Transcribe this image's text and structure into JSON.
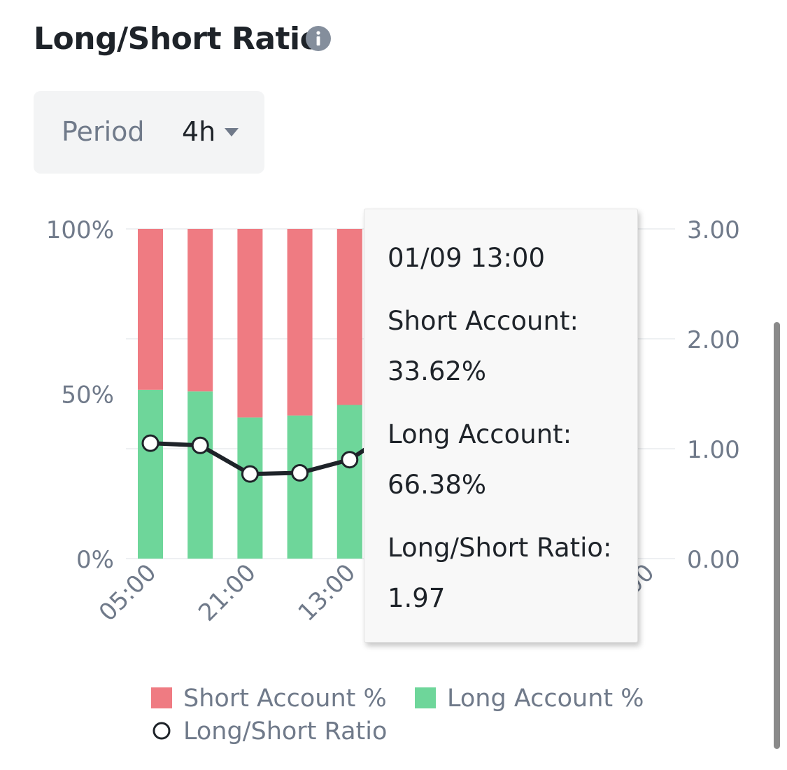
{
  "header": {
    "title": "Long/Short Ratio",
    "info_icon": "info-icon"
  },
  "period": {
    "label": "Period",
    "value": "4h",
    "caret_icon": "caret-down-icon"
  },
  "tooltip": {
    "datetime": "01/09 13:00",
    "short_label": "Short Account:",
    "short_value": "33.62%",
    "long_label": "Long Account:",
    "long_value": "66.38%",
    "ratio_label": "Long/Short Ratio:",
    "ratio_value": "1.97"
  },
  "legend": {
    "short": "Short Account %",
    "long": "Long Account %",
    "ratio": "Long/Short Ratio"
  },
  "chart_data": {
    "type": "bar",
    "stacked": true,
    "categories": [
      "05:00",
      "",
      "21:00",
      "",
      "13:00",
      "",
      "",
      "",
      "",
      "13:00"
    ],
    "x_tick_labels": [
      "05:00",
      "21:00",
      "13:00",
      "",
      "",
      "00"
    ],
    "left_axis": {
      "ticks": [
        "100%",
        "50%",
        "0%"
      ],
      "range": [
        0,
        100
      ]
    },
    "right_axis": {
      "ticks": [
        "3.00",
        "2.00",
        "1.00",
        "0.00"
      ],
      "range": [
        0,
        3
      ]
    },
    "series": [
      {
        "name": "Long Account %",
        "axis": "left",
        "values": [
          51.2,
          50.7,
          42.8,
          43.4,
          46.6,
          null,
          null,
          null,
          null,
          66.38
        ]
      },
      {
        "name": "Short Account %",
        "axis": "left",
        "values": [
          48.8,
          49.3,
          57.2,
          56.6,
          53.4,
          null,
          null,
          null,
          null,
          33.62
        ]
      },
      {
        "name": "Long/Short Ratio",
        "axis": "right",
        "type": "line",
        "values": [
          1.05,
          1.03,
          0.77,
          0.78,
          0.9,
          1.2,
          null,
          null,
          null,
          1.97
        ]
      }
    ],
    "colors": {
      "short": "#ef7b82",
      "long": "#6ed69a",
      "line": "#1e2329",
      "grid": "#eef0f2",
      "axis_text": "#707a8a"
    },
    "grid": true,
    "legend_position": "bottom"
  }
}
